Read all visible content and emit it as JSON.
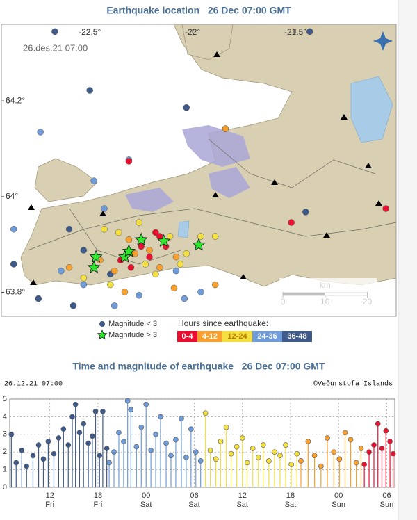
{
  "map": {
    "title": "Earthquake location   26 Dec 07:00 GMT",
    "timestamp": "26.des.21 07:00",
    "xlim": [
      -22.93,
      -21.01
    ],
    "ylim": [
      63.75,
      64.36
    ],
    "xticks": [
      {
        "value": -22.5,
        "label": "-22.5°"
      },
      {
        "value": -22,
        "label": "-22°"
      },
      {
        "value": -21.5,
        "label": "-21.5°"
      }
    ],
    "yticks": [
      {
        "value": 64.2,
        "label": "64.2°"
      },
      {
        "value": 64,
        "label": "64°"
      },
      {
        "value": 63.8,
        "label": "63.8°"
      }
    ],
    "quakes": [
      {
        "lon": [
          -22.31,
          -22.16,
          -22.13,
          -22.35,
          -22.3,
          -22.25,
          -22.18,
          -21.52,
          -21.06,
          -22.21
        ],
        "lat": [
          64.074,
          63.917,
          63.896,
          63.867,
          63.852,
          63.896,
          63.925,
          63.946,
          63.975,
          63.874
        ]
      },
      {
        "lon": [
          -22.45,
          -22.38,
          -22.28,
          -22.21,
          -22.08,
          -21.84,
          -22.31,
          -22.16,
          -22.09,
          -22.6,
          -22.33,
          -21.89
        ],
        "lat": [
          63.867,
          63.845,
          63.881,
          63.888,
          63.874,
          64.142,
          63.91,
          63.852,
          63.809,
          63.852,
          63.801,
          63.816
        ]
      },
      {
        "lon": [
          -22.43,
          -22.36,
          -22.26,
          -22.11,
          -21.96,
          -21.89,
          -22.4,
          -22.23,
          -22.18,
          -22.06,
          -22.53,
          -22.03
        ],
        "lat": [
          63.932,
          63.925,
          63.946,
          63.917,
          63.917,
          63.917,
          63.816,
          63.859,
          63.838,
          63.859,
          63.83,
          63.881
        ]
      },
      {
        "lon": [
          -22.74,
          -22.31,
          -22.48,
          -22.87,
          -22.43,
          -22.26,
          -22.04,
          -21.96,
          -22.53,
          -22.38,
          -22.64,
          -22.08
        ],
        "lat": [
          64.135,
          64.077,
          64.033,
          63.932,
          63.975,
          63.794,
          63.787,
          63.801,
          63.816,
          63.772,
          63.845,
          63.845
        ]
      },
      {
        "lon": [
          -22.67,
          -22.5,
          -22.03,
          -21.84,
          -22.87,
          -22.75,
          -22.58,
          -21.43,
          -22.4,
          -22.53,
          -22.6,
          -21.45
        ],
        "lat": [
          64.345,
          64.222,
          64.186,
          64.142,
          63.859,
          63.787,
          63.772,
          64.345,
          63.838,
          63.888,
          63.932,
          63.968
        ]
      }
    ],
    "large_quakes": {
      "lon": [
        -22.47,
        -22.48,
        -22.33,
        -22.31,
        -22.25,
        -22.14,
        -21.97
      ],
      "lat": [
        63.874,
        63.852,
        63.874,
        63.886,
        63.91,
        63.907,
        63.899
      ]
    },
    "legend": {
      "small": "Magnitude < 3",
      "large": "Magnitude > 3",
      "hours": "Hours since earthquake:"
    },
    "scale": {
      "unit": "km",
      "ticks": [
        0,
        10,
        20
      ]
    }
  },
  "chart_data": {
    "type": "stem",
    "title": "Time and magnitude of earthquake   26 Dec 07:00 GMT",
    "timestamp": "26.12.21 07:00",
    "credit": "©Veðurstofa Íslands",
    "xlim": [
      0,
      48
    ],
    "xticks": [
      {
        "value": 5,
        "label": "12"
      },
      {
        "value": 11,
        "label": "18"
      },
      {
        "value": 17,
        "label": "00"
      },
      {
        "value": 23,
        "label": "06"
      },
      {
        "value": 29,
        "label": "12"
      },
      {
        "value": 35,
        "label": "18"
      },
      {
        "value": 41,
        "label": "00"
      },
      {
        "value": 47,
        "label": "06"
      }
    ],
    "x_day_labels": [
      "Fri",
      "Fri",
      "Sat",
      "Sat",
      "Sat",
      "Sat",
      "Sun",
      "Sun"
    ],
    "ylim": [
      0,
      5
    ],
    "yticks": [
      0,
      1,
      2,
      3,
      4,
      5
    ],
    "grid": true,
    "series": [
      {
        "name": "0-4",
        "color": "#e8102e",
        "x": [
          44.2,
          44.8,
          45.4,
          45.9,
          46.4,
          46.9,
          47.4,
          47.8
        ],
        "values": [
          1.3,
          2.0,
          2.4,
          3.6,
          2.2,
          3.2,
          2.6,
          1.9
        ]
      },
      {
        "name": "4-12",
        "color": "#f7a030",
        "x": [
          36.3,
          37.2,
          38.0,
          38.8,
          39.6,
          40.4,
          41.1,
          41.8,
          42.5,
          43.2,
          43.8
        ],
        "values": [
          1.5,
          2.6,
          1.8,
          1.2,
          2.8,
          2.0,
          1.6,
          3.1,
          2.7,
          1.4,
          2.2
        ]
      },
      {
        "name": "12-24",
        "color": "#f4e040",
        "x": [
          24.4,
          25.0,
          25.7,
          26.3,
          27.0,
          27.6,
          28.3,
          29.0,
          29.6,
          30.3,
          31.0,
          31.6,
          32.3,
          33.0,
          33.7,
          34.4,
          35.1,
          35.8
        ],
        "values": [
          4.2,
          2.1,
          1.6,
          2.6,
          3.4,
          1.9,
          2.3,
          2.8,
          1.4,
          2.2,
          1.7,
          2.4,
          1.5,
          2.0,
          1.8,
          2.4,
          1.3,
          1.9
        ]
      },
      {
        "name": "24-36",
        "color": "#6f9bd8",
        "x": [
          12.4,
          13.0,
          13.6,
          14.2,
          14.7,
          15.1,
          15.8,
          16.4,
          17.0,
          17.6,
          18.2,
          18.8,
          19.5,
          20.1,
          20.7,
          21.4,
          22.0,
          22.6,
          23.2,
          23.8
        ],
        "values": [
          1.4,
          2.0,
          3.1,
          2.6,
          4.9,
          4.4,
          2.3,
          3.4,
          4.7,
          2.1,
          3.0,
          4.0,
          2.5,
          1.8,
          2.7,
          3.9,
          1.7,
          3.3,
          2.0,
          1.5
        ]
      },
      {
        "name": "36-48",
        "color": "#3d5a8a",
        "x": [
          0.2,
          0.8,
          1.5,
          2.1,
          2.9,
          3.6,
          4.2,
          4.8,
          5.5,
          6.1,
          6.7,
          7.3,
          7.8,
          8.2,
          8.7,
          9.2,
          9.8,
          10.3,
          10.7,
          11.2,
          11.6,
          12.1
        ],
        "values": [
          3.0,
          1.4,
          2.1,
          1.2,
          1.8,
          2.4,
          1.6,
          2.6,
          1.9,
          2.8,
          3.3,
          2.4,
          4.0,
          4.7,
          3.1,
          3.6,
          2.5,
          2.9,
          4.3,
          1.8,
          4.3,
          2.2
        ]
      }
    ]
  }
}
